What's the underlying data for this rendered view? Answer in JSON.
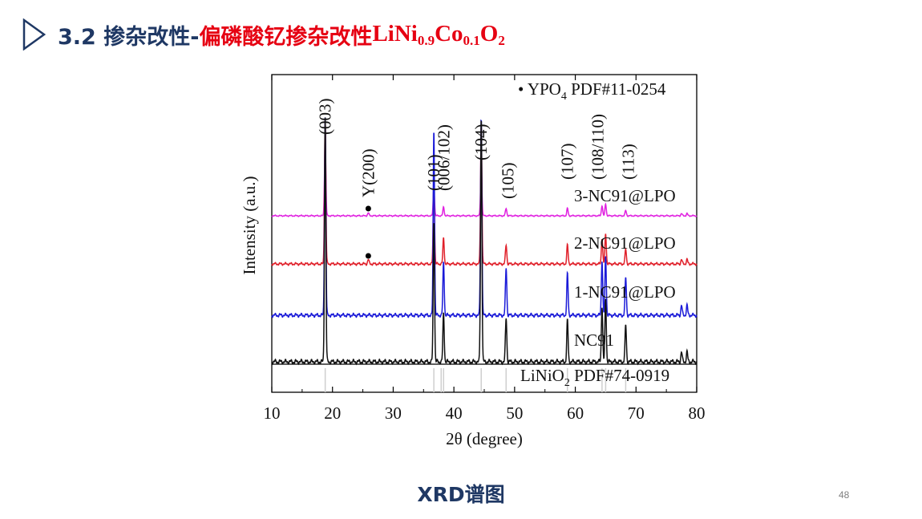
{
  "slide": {
    "title_part1": "3.2 掺杂改性-",
    "title_part2": "偏磷酸钇掺杂改性",
    "formula": {
      "t1": "LiNi",
      "s1": "0.9",
      "t2": "Co",
      "s2": "0.1",
      "t3": "O",
      "s3": "2"
    },
    "caption": "XRD谱图",
    "page_number": "48",
    "icon": "triangle-play-icon"
  },
  "colors": {
    "title": "#1f3864",
    "accent": "#e60012",
    "page_number": "#7f7f7f"
  },
  "chart_data": {
    "type": "line",
    "xlabel": "2θ (degree)",
    "ylabel": "Intensity (a.u.)",
    "xlim": [
      10,
      80
    ],
    "xticks": [
      "10",
      "20",
      "30",
      "40",
      "50",
      "60",
      "70",
      "80"
    ],
    "legend_top": {
      "marker": "•",
      "text": "YPO",
      "sub": "4",
      "suffix": " PDF#11-0254"
    },
    "reference": {
      "text": "LiNiO",
      "sub": "2",
      "suffix": " PDF#74-0919",
      "lines": [
        18.8,
        36.7,
        37.9,
        38.3,
        44.5,
        48.6,
        58.7,
        64.4,
        65.0,
        68.3
      ]
    },
    "peaks": [
      {
        "x": 18.8,
        "label": "(003)"
      },
      {
        "x": 36.7,
        "label": "(101)"
      },
      {
        "x": 38.3,
        "label": "(006/102)"
      },
      {
        "x": 44.5,
        "label": "(104)"
      },
      {
        "x": 48.6,
        "label": "(105)"
      },
      {
        "x": 58.7,
        "label": "(107)"
      },
      {
        "x": 64.6,
        "label": "(108/110)"
      },
      {
        "x": 68.3,
        "label": "(113)"
      }
    ],
    "y200": {
      "x": 25.9,
      "label": "Y(200)"
    },
    "series": [
      {
        "name": "3-NC91@LPO",
        "color": "#e020e0",
        "peaks": [
          [
            18.8,
            1.0
          ],
          [
            25.9,
            0.04
          ],
          [
            36.7,
            0.38
          ],
          [
            38.3,
            0.12
          ],
          [
            44.5,
            0.68
          ],
          [
            48.6,
            0.1
          ],
          [
            58.7,
            0.1
          ],
          [
            64.4,
            0.14
          ],
          [
            65.0,
            0.16
          ],
          [
            68.3,
            0.07
          ],
          [
            77.5,
            0.03
          ],
          [
            78.4,
            0.03
          ]
        ]
      },
      {
        "name": "2-NC91@LPO",
        "color": "#e0202a",
        "peaks": [
          [
            18.8,
            1.0
          ],
          [
            25.9,
            0.03
          ],
          [
            36.7,
            0.58
          ],
          [
            38.3,
            0.18
          ],
          [
            44.5,
            0.95
          ],
          [
            48.6,
            0.13
          ],
          [
            58.7,
            0.13
          ],
          [
            64.4,
            0.18
          ],
          [
            65.0,
            0.21
          ],
          [
            68.3,
            0.1
          ],
          [
            77.5,
            0.03
          ],
          [
            78.4,
            0.03
          ]
        ]
      },
      {
        "name": "1-NC91@LPO",
        "color": "#1a1ad8",
        "peaks": [
          [
            18.8,
            1.0
          ],
          [
            36.7,
            0.94
          ],
          [
            38.3,
            0.27
          ],
          [
            44.5,
            1.0
          ],
          [
            48.6,
            0.24
          ],
          [
            58.7,
            0.21
          ],
          [
            64.4,
            0.28
          ],
          [
            65.0,
            0.3
          ],
          [
            68.3,
            0.19
          ],
          [
            77.5,
            0.05
          ],
          [
            78.4,
            0.05
          ]
        ]
      },
      {
        "name": "NC91",
        "color": "#111111",
        "peaks": [
          [
            18.8,
            1.0
          ],
          [
            36.7,
            0.58
          ],
          [
            38.3,
            0.2
          ],
          [
            44.5,
            1.0
          ],
          [
            48.6,
            0.18
          ],
          [
            58.7,
            0.17
          ],
          [
            64.4,
            0.23
          ],
          [
            65.0,
            0.26
          ],
          [
            68.3,
            0.15
          ],
          [
            77.5,
            0.04
          ],
          [
            78.4,
            0.04
          ]
        ]
      }
    ]
  }
}
